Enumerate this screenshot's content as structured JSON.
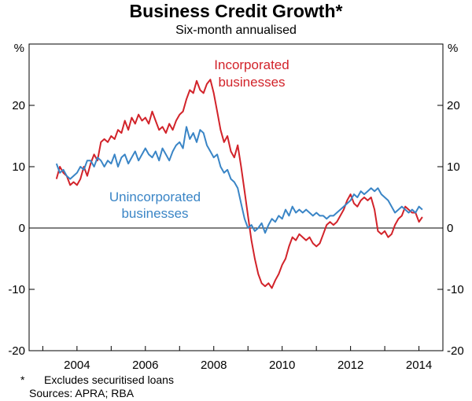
{
  "title": "Business Credit Growth*",
  "subtitle": "Six-month annualised",
  "footnotes": [
    {
      "mark": "*",
      "text": "Excludes securitised loans"
    },
    {
      "mark": "",
      "text": "Sources: APRA; RBA"
    }
  ],
  "colors": {
    "incorporated": "#d2232a",
    "unincorporated": "#3a85c6",
    "axis": "#000000",
    "gridline": "#000000"
  },
  "chart_data": {
    "type": "line",
    "title": "Business Credit Growth*",
    "subtitle": "Six-month annualised",
    "y_unit_left": "%",
    "y_unit_right": "%",
    "ylim": [
      -20,
      30
    ],
    "y_ticks": [
      20,
      10,
      0,
      -10,
      -20
    ],
    "y_tick_labels": [
      "20",
      "10",
      "0",
      "-10",
      "-20"
    ],
    "xlim": [
      2002.6,
      2014.7
    ],
    "x_ticks": [
      2004,
      2006,
      2008,
      2010,
      2012,
      2014
    ],
    "x_tick_labels": [
      "2004",
      "2006",
      "2008",
      "2010",
      "2012",
      "2014"
    ],
    "grid": false,
    "zero_line": true,
    "series": [
      {
        "name": "Incorporated businesses",
        "label_lines": [
          "Incorporated",
          "businesses"
        ],
        "color": "#d2232a",
        "points": [
          [
            2003.4,
            8.0
          ],
          [
            2003.5,
            10.0
          ],
          [
            2003.6,
            9.0
          ],
          [
            2003.7,
            8.5
          ],
          [
            2003.8,
            7.0
          ],
          [
            2003.9,
            7.5
          ],
          [
            2004.0,
            7.0
          ],
          [
            2004.1,
            8.0
          ],
          [
            2004.2,
            10.0
          ],
          [
            2004.3,
            8.5
          ],
          [
            2004.4,
            10.5
          ],
          [
            2004.5,
            12.0
          ],
          [
            2004.6,
            11.0
          ],
          [
            2004.7,
            14.0
          ],
          [
            2004.8,
            14.5
          ],
          [
            2004.9,
            14.0
          ],
          [
            2005.0,
            15.0
          ],
          [
            2005.1,
            14.5
          ],
          [
            2005.2,
            16.0
          ],
          [
            2005.3,
            15.5
          ],
          [
            2005.4,
            17.5
          ],
          [
            2005.5,
            16.0
          ],
          [
            2005.6,
            18.0
          ],
          [
            2005.7,
            17.0
          ],
          [
            2005.8,
            18.5
          ],
          [
            2005.9,
            17.5
          ],
          [
            2006.0,
            18.0
          ],
          [
            2006.1,
            17.0
          ],
          [
            2006.2,
            19.0
          ],
          [
            2006.3,
            17.5
          ],
          [
            2006.4,
            16.0
          ],
          [
            2006.5,
            16.5
          ],
          [
            2006.6,
            15.5
          ],
          [
            2006.7,
            17.0
          ],
          [
            2006.8,
            16.0
          ],
          [
            2006.9,
            17.5
          ],
          [
            2007.0,
            18.5
          ],
          [
            2007.1,
            19.0
          ],
          [
            2007.2,
            21.0
          ],
          [
            2007.3,
            22.5
          ],
          [
            2007.4,
            22.0
          ],
          [
            2007.5,
            24.0
          ],
          [
            2007.6,
            22.5
          ],
          [
            2007.7,
            22.0
          ],
          [
            2007.8,
            23.5
          ],
          [
            2007.9,
            24.2
          ],
          [
            2008.0,
            22.0
          ],
          [
            2008.1,
            19.0
          ],
          [
            2008.2,
            16.0
          ],
          [
            2008.3,
            14.0
          ],
          [
            2008.4,
            15.0
          ],
          [
            2008.5,
            12.5
          ],
          [
            2008.6,
            11.5
          ],
          [
            2008.7,
            13.5
          ],
          [
            2008.8,
            10.0
          ],
          [
            2008.9,
            6.0
          ],
          [
            2009.0,
            2.0
          ],
          [
            2009.1,
            -2.0
          ],
          [
            2009.2,
            -5.0
          ],
          [
            2009.3,
            -7.5
          ],
          [
            2009.4,
            -9.0
          ],
          [
            2009.5,
            -9.5
          ],
          [
            2009.6,
            -9.0
          ],
          [
            2009.7,
            -9.8
          ],
          [
            2009.8,
            -8.5
          ],
          [
            2009.9,
            -7.5
          ],
          [
            2010.0,
            -6.0
          ],
          [
            2010.1,
            -5.0
          ],
          [
            2010.2,
            -3.0
          ],
          [
            2010.3,
            -1.5
          ],
          [
            2010.4,
            -2.0
          ],
          [
            2010.5,
            -1.0
          ],
          [
            2010.6,
            -1.5
          ],
          [
            2010.7,
            -2.0
          ],
          [
            2010.8,
            -1.5
          ],
          [
            2010.9,
            -2.5
          ],
          [
            2011.0,
            -3.0
          ],
          [
            2011.1,
            -2.5
          ],
          [
            2011.2,
            -1.0
          ],
          [
            2011.3,
            0.5
          ],
          [
            2011.4,
            1.0
          ],
          [
            2011.5,
            0.5
          ],
          [
            2011.6,
            1.0
          ],
          [
            2011.7,
            2.0
          ],
          [
            2011.8,
            3.0
          ],
          [
            2011.9,
            4.5
          ],
          [
            2012.0,
            5.5
          ],
          [
            2012.1,
            4.0
          ],
          [
            2012.2,
            3.5
          ],
          [
            2012.3,
            4.5
          ],
          [
            2012.4,
            5.0
          ],
          [
            2012.5,
            4.5
          ],
          [
            2012.6,
            5.0
          ],
          [
            2012.7,
            3.0
          ],
          [
            2012.8,
            -0.5
          ],
          [
            2012.9,
            -1.0
          ],
          [
            2013.0,
            -0.5
          ],
          [
            2013.1,
            -1.5
          ],
          [
            2013.2,
            -1.0
          ],
          [
            2013.3,
            0.5
          ],
          [
            2013.4,
            1.5
          ],
          [
            2013.5,
            2.0
          ],
          [
            2013.6,
            3.5
          ],
          [
            2013.7,
            3.0
          ],
          [
            2013.8,
            2.5
          ],
          [
            2013.9,
            2.5
          ],
          [
            2014.0,
            1.0
          ],
          [
            2014.1,
            1.8
          ]
        ]
      },
      {
        "name": "Unincorporated businesses",
        "label_lines": [
          "Unincorporated",
          "businesses"
        ],
        "color": "#3a85c6",
        "points": [
          [
            2003.4,
            10.5
          ],
          [
            2003.5,
            9.0
          ],
          [
            2003.6,
            9.5
          ],
          [
            2003.7,
            8.5
          ],
          [
            2003.8,
            8.0
          ],
          [
            2003.9,
            8.5
          ],
          [
            2004.0,
            9.0
          ],
          [
            2004.1,
            10.0
          ],
          [
            2004.2,
            9.5
          ],
          [
            2004.3,
            11.0
          ],
          [
            2004.4,
            11.0
          ],
          [
            2004.5,
            10.0
          ],
          [
            2004.6,
            11.5
          ],
          [
            2004.7,
            11.0
          ],
          [
            2004.8,
            10.0
          ],
          [
            2004.9,
            11.0
          ],
          [
            2005.0,
            10.5
          ],
          [
            2005.1,
            12.0
          ],
          [
            2005.2,
            10.0
          ],
          [
            2005.3,
            11.5
          ],
          [
            2005.4,
            12.0
          ],
          [
            2005.5,
            10.5
          ],
          [
            2005.6,
            11.5
          ],
          [
            2005.7,
            12.5
          ],
          [
            2005.8,
            11.0
          ],
          [
            2005.9,
            12.0
          ],
          [
            2006.0,
            13.0
          ],
          [
            2006.1,
            12.0
          ],
          [
            2006.2,
            11.5
          ],
          [
            2006.3,
            12.5
          ],
          [
            2006.4,
            11.0
          ],
          [
            2006.5,
            13.0
          ],
          [
            2006.6,
            12.0
          ],
          [
            2006.7,
            11.0
          ],
          [
            2006.8,
            12.5
          ],
          [
            2006.9,
            13.5
          ],
          [
            2007.0,
            14.0
          ],
          [
            2007.1,
            13.0
          ],
          [
            2007.2,
            16.5
          ],
          [
            2007.3,
            14.5
          ],
          [
            2007.4,
            15.5
          ],
          [
            2007.5,
            14.0
          ],
          [
            2007.6,
            16.0
          ],
          [
            2007.7,
            15.5
          ],
          [
            2007.8,
            13.5
          ],
          [
            2007.9,
            12.5
          ],
          [
            2008.0,
            11.5
          ],
          [
            2008.1,
            12.0
          ],
          [
            2008.2,
            10.0
          ],
          [
            2008.3,
            9.0
          ],
          [
            2008.4,
            9.5
          ],
          [
            2008.5,
            8.0
          ],
          [
            2008.6,
            7.5
          ],
          [
            2008.7,
            6.5
          ],
          [
            2008.8,
            4.0
          ],
          [
            2008.9,
            1.5
          ],
          [
            2009.0,
            0.0
          ],
          [
            2009.1,
            0.5
          ],
          [
            2009.2,
            -0.5
          ],
          [
            2009.3,
            0.0
          ],
          [
            2009.4,
            0.8
          ],
          [
            2009.5,
            -0.8
          ],
          [
            2009.6,
            0.5
          ],
          [
            2009.7,
            1.5
          ],
          [
            2009.8,
            1.0
          ],
          [
            2009.9,
            2.0
          ],
          [
            2010.0,
            1.5
          ],
          [
            2010.1,
            3.0
          ],
          [
            2010.2,
            2.0
          ],
          [
            2010.3,
            3.5
          ],
          [
            2010.4,
            2.5
          ],
          [
            2010.5,
            3.0
          ],
          [
            2010.6,
            2.5
          ],
          [
            2010.7,
            3.0
          ],
          [
            2010.8,
            2.5
          ],
          [
            2010.9,
            2.0
          ],
          [
            2011.0,
            2.5
          ],
          [
            2011.1,
            2.0
          ],
          [
            2011.2,
            2.0
          ],
          [
            2011.3,
            1.5
          ],
          [
            2011.4,
            2.0
          ],
          [
            2011.5,
            2.0
          ],
          [
            2011.6,
            2.5
          ],
          [
            2011.7,
            3.0
          ],
          [
            2011.8,
            3.5
          ],
          [
            2011.9,
            4.0
          ],
          [
            2012.0,
            4.5
          ],
          [
            2012.1,
            5.5
          ],
          [
            2012.2,
            5.0
          ],
          [
            2012.3,
            6.0
          ],
          [
            2012.4,
            5.5
          ],
          [
            2012.5,
            6.0
          ],
          [
            2012.6,
            6.5
          ],
          [
            2012.7,
            6.0
          ],
          [
            2012.8,
            6.5
          ],
          [
            2012.9,
            5.5
          ],
          [
            2013.0,
            5.0
          ],
          [
            2013.1,
            4.5
          ],
          [
            2013.2,
            3.5
          ],
          [
            2013.3,
            2.5
          ],
          [
            2013.4,
            3.0
          ],
          [
            2013.5,
            3.5
          ],
          [
            2013.6,
            3.0
          ],
          [
            2013.7,
            2.5
          ],
          [
            2013.8,
            3.0
          ],
          [
            2013.9,
            2.5
          ],
          [
            2014.0,
            3.5
          ],
          [
            2014.1,
            3.0
          ]
        ]
      }
    ]
  }
}
